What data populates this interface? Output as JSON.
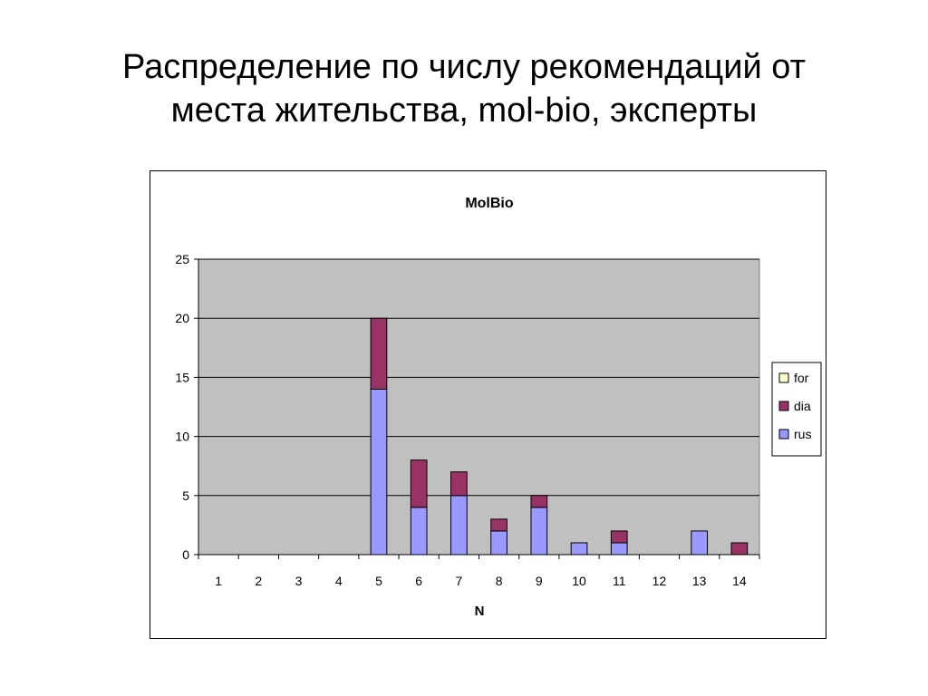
{
  "page": {
    "title_line1": "Распределение по числу рекомендаций от",
    "title_line2": "места жительства, mol-bio, эксперты"
  },
  "chart_data": {
    "type": "bar",
    "stacked": true,
    "title": "MolBio",
    "xlabel": "N",
    "ylabel": "",
    "categories": [
      "1",
      "2",
      "3",
      "4",
      "5",
      "6",
      "7",
      "8",
      "9",
      "10",
      "11",
      "12",
      "13",
      "14"
    ],
    "ylim": [
      0,
      25
    ],
    "yticks": [
      0,
      5,
      10,
      15,
      20,
      25
    ],
    "grid": true,
    "legend_position": "right",
    "series": [
      {
        "name": "rus",
        "color": "#9999ff",
        "values": [
          0,
          0,
          0,
          0,
          14,
          4,
          5,
          2,
          4,
          1,
          1,
          0,
          2,
          0
        ]
      },
      {
        "name": "dia",
        "color": "#993366",
        "values": [
          0,
          0,
          0,
          0,
          6,
          4,
          2,
          1,
          1,
          0,
          1,
          0,
          0,
          1
        ]
      },
      {
        "name": "for",
        "color": "#ffffcc",
        "values": [
          0,
          0,
          0,
          0,
          0,
          0,
          0,
          0,
          0,
          0,
          0,
          0,
          0,
          0
        ]
      }
    ],
    "legend_order": [
      "for",
      "dia",
      "rus"
    ],
    "plot_background": "#c0c0c0"
  }
}
